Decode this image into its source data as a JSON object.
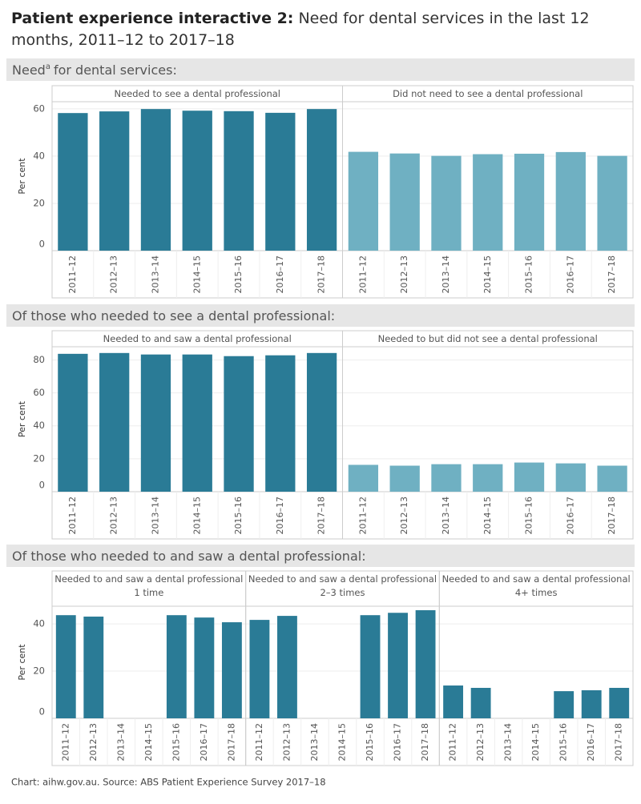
{
  "header": {
    "title_bold": "Patient experience interactive 2:",
    "title": "Need for dental services in the last 12 months, 2011–12 to 2017–18"
  },
  "chart_data": [
    {
      "type": "bar",
      "title": "Need",
      "title_superscript": "a",
      "title_continued": "for dental services:",
      "ylabel": "Per cent",
      "ylim": [
        0,
        63
      ],
      "yticks": [
        0,
        20,
        40,
        60
      ],
      "grid": true,
      "categories": [
        "2011–12",
        "2012–13",
        "2013–14",
        "2014–15",
        "2015–16",
        "2016–17",
        "2017–18"
      ],
      "panels": [
        {
          "title": "Needed to see a dental professional",
          "color": "#2a7b96",
          "values": [
            58.2,
            58.9,
            59.9,
            59.2,
            59.0,
            58.3,
            59.9
          ]
        },
        {
          "title": "Did not need to see a dental professional",
          "color": "#6fb0c2",
          "values": [
            41.8,
            41.1,
            40.1,
            40.8,
            41.0,
            41.7,
            40.1
          ]
        }
      ]
    },
    {
      "type": "bar",
      "title": "Of those who needed to see a dental professional:",
      "ylabel": "Per cent",
      "ylim": [
        0,
        88
      ],
      "yticks": [
        0,
        20,
        40,
        60,
        80
      ],
      "grid": true,
      "categories": [
        "2011–12",
        "2012–13",
        "2013–14",
        "2014–15",
        "2015–16",
        "2016–17",
        "2017–18"
      ],
      "panels": [
        {
          "title": "Needed to and saw a dental professional",
          "color": "#2a7b96",
          "values": [
            83.7,
            84.2,
            83.3,
            83.3,
            82.3,
            82.8,
            84.2
          ]
        },
        {
          "title": "Needed to but did not see a dental professional",
          "color": "#6fb0c2",
          "values": [
            16.3,
            15.8,
            16.7,
            16.7,
            17.7,
            17.2,
            15.8
          ]
        }
      ]
    },
    {
      "type": "bar",
      "title": "Of those who needed to and saw a dental professional:",
      "ylabel": "Per cent",
      "ylim": [
        0,
        47.5
      ],
      "yticks": [
        0,
        20,
        40
      ],
      "grid": true,
      "categories": [
        "2011–12",
        "2012–13",
        "2013–14",
        "2014–15",
        "2015–16",
        "2016–17",
        "2017–18"
      ],
      "panels": [
        {
          "title": "Needed to and saw a dental professional 1 time",
          "color": "#2a7b96",
          "values": [
            43.7,
            43.1,
            null,
            null,
            43.7,
            42.7,
            40.7
          ]
        },
        {
          "title": "Needed to and saw a dental professional 2–3 times",
          "color": "#2a7b96",
          "values": [
            41.7,
            43.4,
            null,
            null,
            43.7,
            44.7,
            45.8
          ]
        },
        {
          "title": "Needed to and saw a dental professional 4+ times",
          "color": "#2a7b96",
          "values": [
            13.9,
            12.9,
            null,
            null,
            11.5,
            11.9,
            12.9
          ]
        }
      ]
    }
  ],
  "footer": "Chart: aihw.gov.au. Source: ABS Patient Experience Survey 2017–18"
}
